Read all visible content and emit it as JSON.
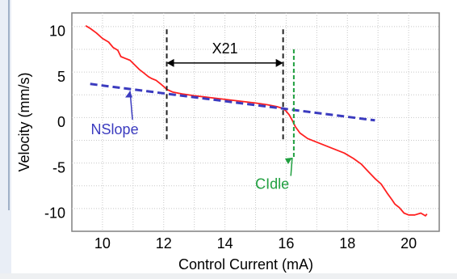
{
  "chart_data": {
    "type": "line",
    "title": "",
    "xlabel": "Control Current (mA)",
    "ylabel": "Velocity (mm/s)",
    "xlim": [
      9,
      21
    ],
    "ylim": [
      -12,
      12
    ],
    "x_ticks": [
      10,
      12,
      14,
      16,
      18,
      20
    ],
    "y_ticks": [
      10,
      5,
      0,
      -5,
      -10
    ],
    "grid": true,
    "series": [
      {
        "color": "#ff2020",
        "points": [
          [
            9.45,
            10.6
          ],
          [
            9.6,
            10.3
          ],
          [
            9.8,
            9.8
          ],
          [
            10.0,
            9.2
          ],
          [
            10.2,
            8.8
          ],
          [
            10.35,
            8.2
          ],
          [
            10.5,
            7.9
          ],
          [
            10.6,
            7.2
          ],
          [
            10.75,
            7.0
          ],
          [
            10.9,
            6.8
          ],
          [
            11.05,
            6.3
          ],
          [
            11.2,
            5.8
          ],
          [
            11.35,
            5.4
          ],
          [
            11.5,
            5.0
          ],
          [
            11.6,
            4.8
          ],
          [
            11.75,
            4.6
          ],
          [
            11.9,
            4.2
          ],
          [
            12.0,
            3.9
          ],
          [
            12.1,
            3.6
          ],
          [
            12.3,
            3.3
          ],
          [
            12.6,
            3.1
          ],
          [
            13.0,
            2.9
          ],
          [
            13.5,
            2.7
          ],
          [
            14.0,
            2.5
          ],
          [
            14.5,
            2.3
          ],
          [
            15.0,
            2.1
          ],
          [
            15.4,
            1.9
          ],
          [
            15.7,
            1.7
          ],
          [
            15.9,
            1.5
          ],
          [
            16.0,
            1.2
          ],
          [
            16.1,
            0.8
          ],
          [
            16.2,
            0.2
          ],
          [
            16.3,
            -0.5
          ],
          [
            16.45,
            -1.2
          ],
          [
            16.7,
            -1.8
          ],
          [
            17.0,
            -2.2
          ],
          [
            17.3,
            -2.6
          ],
          [
            17.6,
            -3.0
          ],
          [
            17.9,
            -3.4
          ],
          [
            18.2,
            -4.0
          ],
          [
            18.45,
            -4.6
          ],
          [
            18.7,
            -5.5
          ],
          [
            18.9,
            -6.2
          ],
          [
            19.1,
            -6.8
          ],
          [
            19.3,
            -7.8
          ],
          [
            19.45,
            -8.5
          ],
          [
            19.55,
            -9.0
          ],
          [
            19.7,
            -9.4
          ],
          [
            19.85,
            -10.0
          ],
          [
            20.0,
            -10.2
          ],
          [
            20.2,
            -10.2
          ],
          [
            20.4,
            -10.0
          ],
          [
            20.55,
            -10.3
          ],
          [
            20.6,
            -10.1
          ]
        ]
      },
      {
        "color": "#3b3bbf",
        "style": "dashed",
        "points": [
          [
            9.6,
            4.2
          ],
          [
            18.9,
            0.2
          ]
        ]
      }
    ],
    "annotations": {
      "x21": {
        "label": "X21",
        "x_start": 12.1,
        "x_end": 15.9,
        "y": 6.5
      },
      "vlines_black": [
        {
          "x": 12.1,
          "y_top": 10.2,
          "y_bottom": -2.0
        },
        {
          "x": 15.9,
          "y_top": 10.2,
          "y_bottom": -2.0
        }
      ],
      "nslope": {
        "label": "NSlope",
        "color": "#3b3bbf",
        "text_x": 10.4,
        "text_y": -0.8,
        "arrow_to": [
          10.9,
          3.6
        ]
      },
      "cidle": {
        "label": "CIdle",
        "color": "#1f9f3f",
        "x": 16.25,
        "y_top": 8.0,
        "y_bottom": -4.0,
        "text_x": 16.1,
        "text_y": -6.8
      }
    }
  }
}
